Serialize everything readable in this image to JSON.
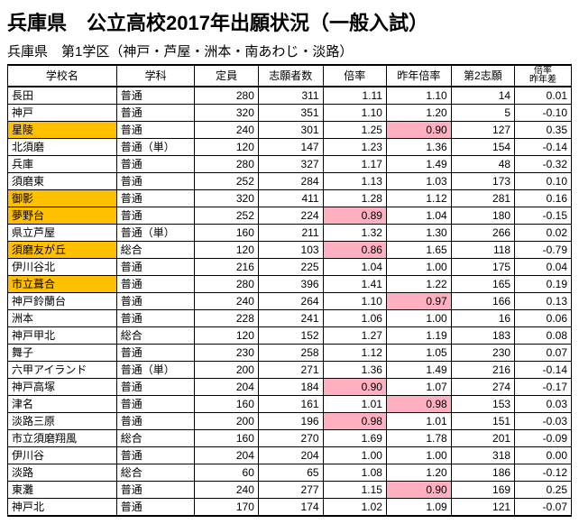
{
  "title": "兵庫県　公立高校2017年出願状況（一般入試）",
  "subtitle": "兵庫県　第1学区（神戸・芦屋・洲本・南あわじ・淡路）",
  "headers": {
    "school": "学校名",
    "dept": "学科",
    "capacity": "定員",
    "applicants": "志願者数",
    "rate": "倍率",
    "prev_rate": "昨年倍率",
    "second": "第2志願",
    "diff_line1": "倍率",
    "diff_line2": "昨年差"
  },
  "highlight_school_color": "#ffc000",
  "highlight_rate_color": "#ffb0c0",
  "rows": [
    {
      "school": "長田",
      "dept": "普通",
      "cap": "280",
      "app": "311",
      "rate": "1.11",
      "prev": "1.10",
      "second": "14",
      "diff": "0.01",
      "hl_school": false,
      "hl_rate": false,
      "hl_prev": false
    },
    {
      "school": "神戸",
      "dept": "普通",
      "cap": "320",
      "app": "351",
      "rate": "1.10",
      "prev": "1.20",
      "second": "5",
      "diff": "-0.10",
      "hl_school": false,
      "hl_rate": false,
      "hl_prev": false
    },
    {
      "school": "星陵",
      "dept": "普通",
      "cap": "240",
      "app": "301",
      "rate": "1.25",
      "prev": "0.90",
      "second": "127",
      "diff": "0.35",
      "hl_school": true,
      "hl_rate": false,
      "hl_prev": true
    },
    {
      "school": "北須磨",
      "dept": "普通（単）",
      "cap": "120",
      "app": "147",
      "rate": "1.23",
      "prev": "1.36",
      "second": "154",
      "diff": "-0.14",
      "hl_school": false,
      "hl_rate": false,
      "hl_prev": false
    },
    {
      "school": "兵庫",
      "dept": "普通",
      "cap": "280",
      "app": "327",
      "rate": "1.17",
      "prev": "1.49",
      "second": "48",
      "diff": "-0.32",
      "hl_school": false,
      "hl_rate": false,
      "hl_prev": false
    },
    {
      "school": "須磨東",
      "dept": "普通",
      "cap": "252",
      "app": "284",
      "rate": "1.13",
      "prev": "1.03",
      "second": "173",
      "diff": "0.10",
      "hl_school": false,
      "hl_rate": false,
      "hl_prev": false
    },
    {
      "school": "御影",
      "dept": "普通",
      "cap": "320",
      "app": "411",
      "rate": "1.28",
      "prev": "1.12",
      "second": "281",
      "diff": "0.16",
      "hl_school": true,
      "hl_rate": false,
      "hl_prev": false
    },
    {
      "school": "夢野台",
      "dept": "普通",
      "cap": "252",
      "app": "224",
      "rate": "0.89",
      "prev": "1.04",
      "second": "180",
      "diff": "-0.15",
      "hl_school": true,
      "hl_rate": true,
      "hl_prev": false
    },
    {
      "school": "県立芦屋",
      "dept": "普通（単）",
      "cap": "160",
      "app": "211",
      "rate": "1.32",
      "prev": "1.30",
      "second": "266",
      "diff": "0.02",
      "hl_school": false,
      "hl_rate": false,
      "hl_prev": false
    },
    {
      "school": "須磨友が丘",
      "dept": "総合",
      "cap": "120",
      "app": "103",
      "rate": "0.86",
      "prev": "1.65",
      "second": "118",
      "diff": "-0.79",
      "hl_school": true,
      "hl_rate": true,
      "hl_prev": false
    },
    {
      "school": "伊川谷北",
      "dept": "普通",
      "cap": "216",
      "app": "225",
      "rate": "1.04",
      "prev": "1.00",
      "second": "175",
      "diff": "0.04",
      "hl_school": false,
      "hl_rate": false,
      "hl_prev": false
    },
    {
      "school": "市立葺合",
      "dept": "普通",
      "cap": "280",
      "app": "396",
      "rate": "1.41",
      "prev": "1.22",
      "second": "165",
      "diff": "0.19",
      "hl_school": true,
      "hl_rate": false,
      "hl_prev": false
    },
    {
      "school": "神戸鈴蘭台",
      "dept": "普通",
      "cap": "240",
      "app": "264",
      "rate": "1.10",
      "prev": "0.97",
      "second": "166",
      "diff": "0.13",
      "hl_school": false,
      "hl_rate": false,
      "hl_prev": true
    },
    {
      "school": "洲本",
      "dept": "普通",
      "cap": "228",
      "app": "241",
      "rate": "1.06",
      "prev": "1.00",
      "second": "16",
      "diff": "0.06",
      "hl_school": false,
      "hl_rate": false,
      "hl_prev": false
    },
    {
      "school": "神戸甲北",
      "dept": "総合",
      "cap": "120",
      "app": "152",
      "rate": "1.27",
      "prev": "1.19",
      "second": "183",
      "diff": "0.08",
      "hl_school": false,
      "hl_rate": false,
      "hl_prev": false
    },
    {
      "school": "舞子",
      "dept": "普通",
      "cap": "230",
      "app": "258",
      "rate": "1.12",
      "prev": "1.05",
      "second": "230",
      "diff": "0.07",
      "hl_school": false,
      "hl_rate": false,
      "hl_prev": false
    },
    {
      "school": "六甲アイランド",
      "dept": "普通（単）",
      "cap": "200",
      "app": "271",
      "rate": "1.36",
      "prev": "1.49",
      "second": "216",
      "diff": "-0.14",
      "hl_school": false,
      "hl_rate": false,
      "hl_prev": false
    },
    {
      "school": "神戸高塚",
      "dept": "普通",
      "cap": "204",
      "app": "184",
      "rate": "0.90",
      "prev": "1.07",
      "second": "274",
      "diff": "-0.17",
      "hl_school": false,
      "hl_rate": true,
      "hl_prev": false
    },
    {
      "school": "津名",
      "dept": "普通",
      "cap": "160",
      "app": "161",
      "rate": "1.01",
      "prev": "0.98",
      "second": "153",
      "diff": "0.03",
      "hl_school": false,
      "hl_rate": false,
      "hl_prev": true
    },
    {
      "school": "淡路三原",
      "dept": "普通",
      "cap": "200",
      "app": "196",
      "rate": "0.98",
      "prev": "1.01",
      "second": "151",
      "diff": "-0.03",
      "hl_school": false,
      "hl_rate": true,
      "hl_prev": false
    },
    {
      "school": "市立須磨翔風",
      "dept": "総合",
      "cap": "160",
      "app": "270",
      "rate": "1.69",
      "prev": "1.78",
      "second": "201",
      "diff": "-0.09",
      "hl_school": false,
      "hl_rate": false,
      "hl_prev": false
    },
    {
      "school": "伊川谷",
      "dept": "普通",
      "cap": "204",
      "app": "204",
      "rate": "1.00",
      "prev": "1.00",
      "second": "318",
      "diff": "0.00",
      "hl_school": false,
      "hl_rate": false,
      "hl_prev": false
    },
    {
      "school": "淡路",
      "dept": "総合",
      "cap": "60",
      "app": "65",
      "rate": "1.08",
      "prev": "1.20",
      "second": "186",
      "diff": "-0.12",
      "hl_school": false,
      "hl_rate": false,
      "hl_prev": false
    },
    {
      "school": "東灘",
      "dept": "普通",
      "cap": "240",
      "app": "277",
      "rate": "1.15",
      "prev": "0.90",
      "second": "169",
      "diff": "0.25",
      "hl_school": false,
      "hl_rate": false,
      "hl_prev": true
    },
    {
      "school": "神戸北",
      "dept": "普通",
      "cap": "170",
      "app": "174",
      "rate": "1.02",
      "prev": "1.09",
      "second": "121",
      "diff": "-0.07",
      "hl_school": false,
      "hl_rate": false,
      "hl_prev": false
    }
  ]
}
